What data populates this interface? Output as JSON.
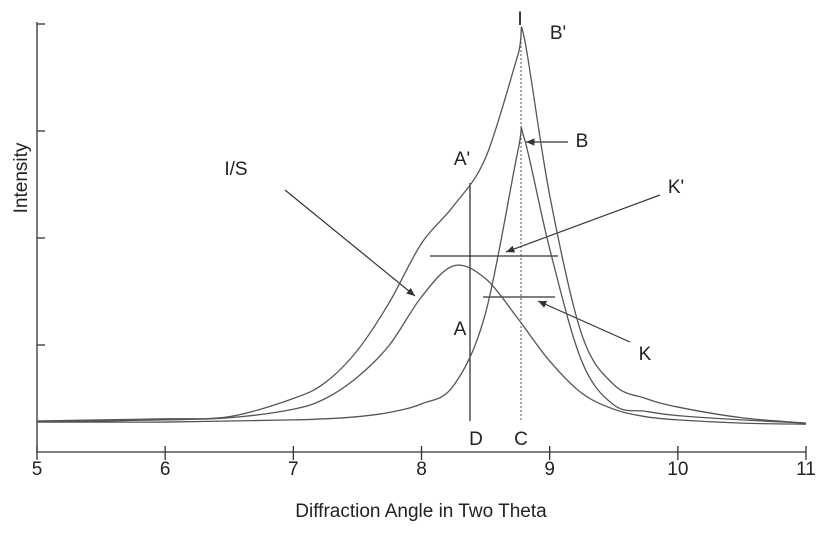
{
  "chart_data": {
    "type": "line",
    "x_label": "Diffraction Angle in Two Theta",
    "y_label": "Intensity",
    "x": [
      5,
      5.5,
      6,
      6.5,
      7,
      7.25,
      7.5,
      7.75,
      8,
      8.25,
      8.5,
      8.75,
      8.8,
      9,
      9.25,
      9.5,
      9.75,
      10,
      10.5,
      11
    ],
    "series": [
      {
        "name": "I/S",
        "color": "#555555",
        "values": [
          0.29,
          0.29,
          0.3,
          0.32,
          0.4,
          0.5,
          0.7,
          1.0,
          1.45,
          1.74,
          1.62,
          1.25,
          1.17,
          0.85,
          0.55,
          0.4,
          0.33,
          0.3,
          0.27,
          0.26
        ]
      },
      {
        "name": "B",
        "color": "#555555",
        "values": [
          0.28,
          0.28,
          0.28,
          0.29,
          0.3,
          0.31,
          0.33,
          0.37,
          0.45,
          0.62,
          1.3,
          2.8,
          2.94,
          1.9,
          0.85,
          0.44,
          0.38,
          0.34,
          0.3,
          0.27
        ]
      },
      {
        "name": "B'",
        "color": "#555555",
        "values": [
          0.29,
          0.3,
          0.31,
          0.33,
          0.5,
          0.65,
          0.95,
          1.4,
          1.95,
          2.3,
          2.75,
          3.7,
          3.88,
          2.4,
          1.1,
          0.63,
          0.5,
          0.42,
          0.32,
          0.27
        ]
      }
    ],
    "annotations": [
      "I",
      "B'",
      "B",
      "A'",
      "I/S",
      "K'",
      "A",
      "K",
      "D",
      "C"
    ],
    "xlim": [
      5,
      11
    ],
    "xticks": [
      5,
      6,
      7,
      8,
      9,
      10,
      11
    ],
    "ylim": [
      0,
      4
    ],
    "yticks": [
      1,
      2,
      3,
      4
    ]
  }
}
